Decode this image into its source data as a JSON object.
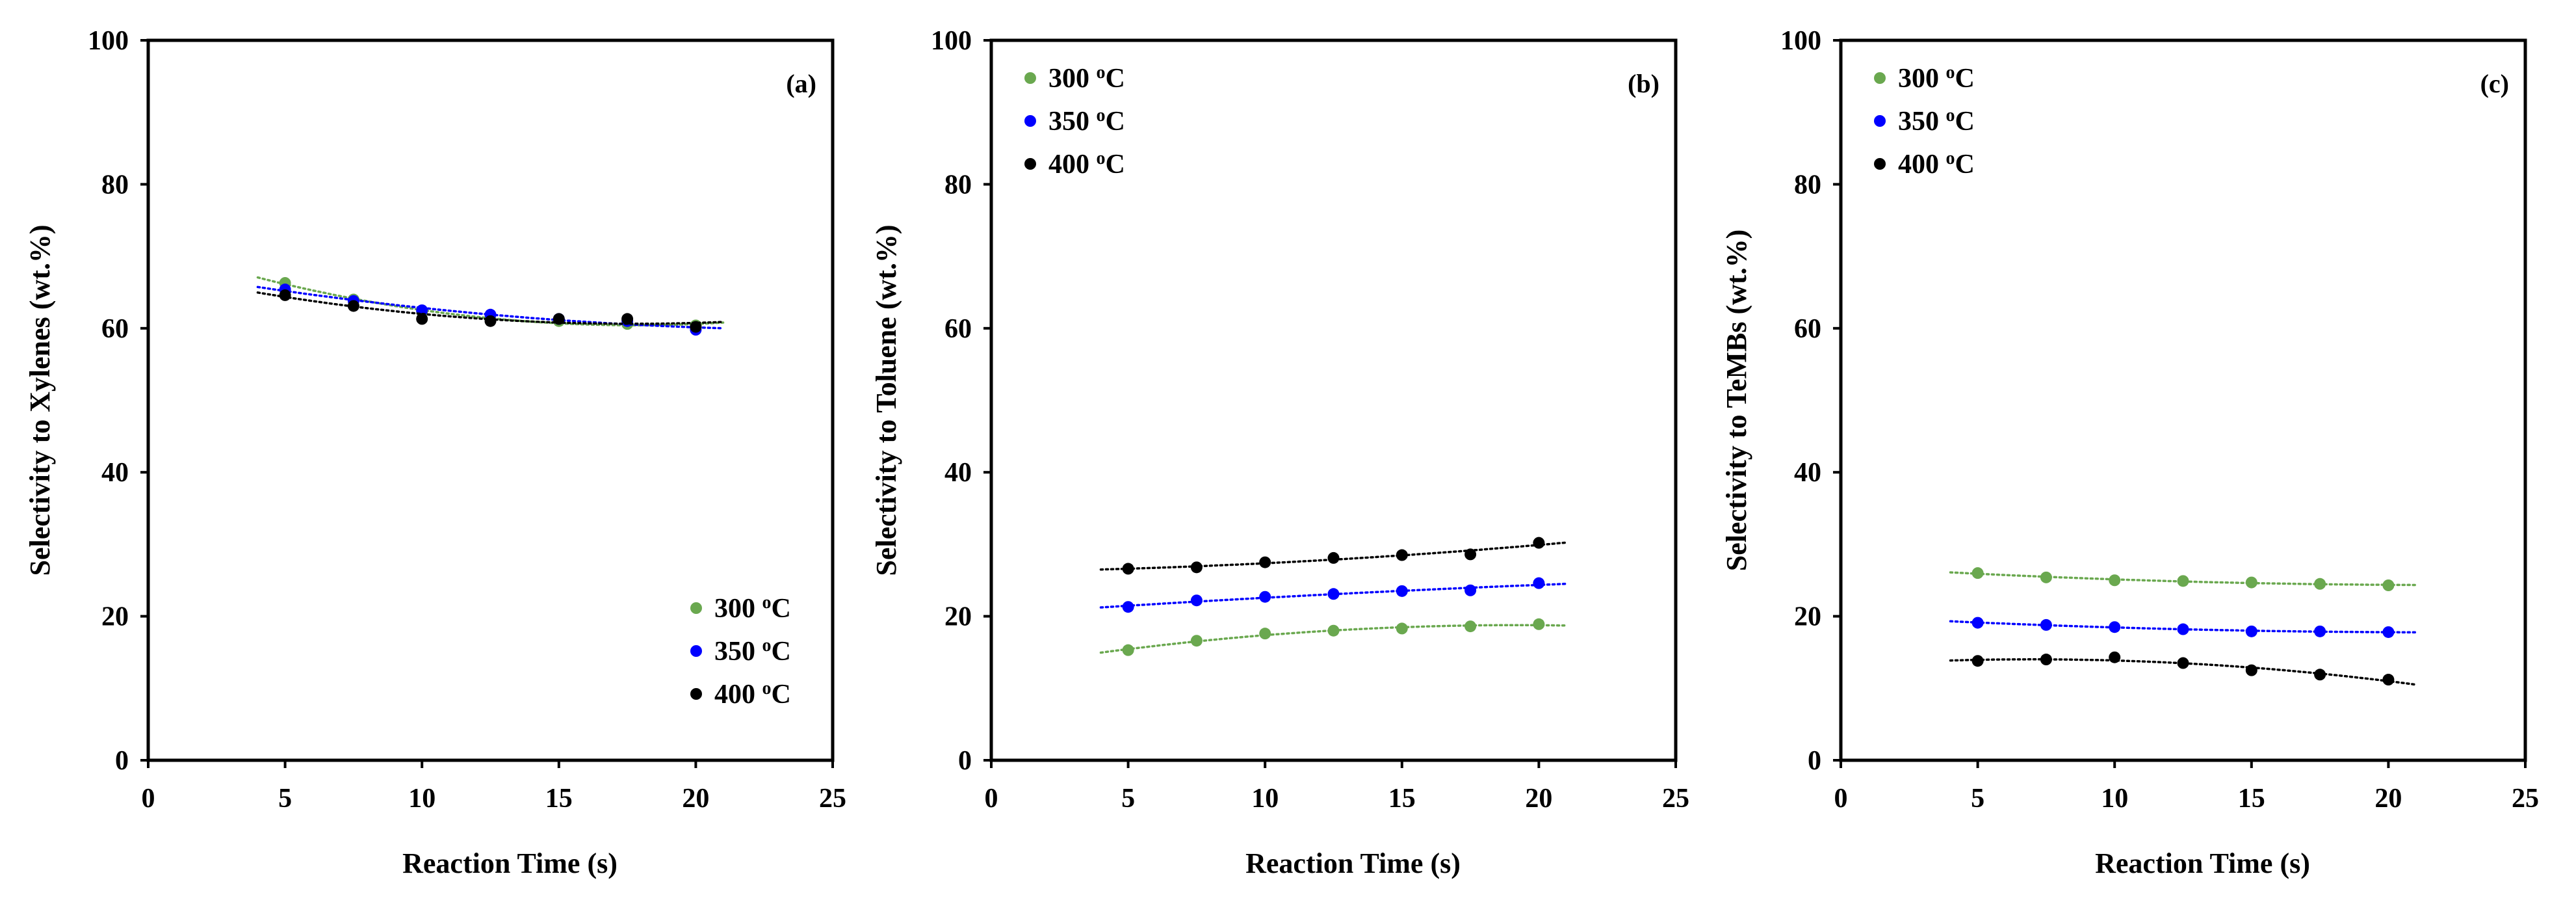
{
  "chart_data": [
    {
      "type": "scatter",
      "panel_label": "(a)",
      "xlabel": "Reaction Time (s)",
      "ylabel": "Selectivity to Xylenes (wt.%)",
      "xlim": [
        0,
        25
      ],
      "ylim": [
        0,
        100
      ],
      "xticks": [
        "0",
        "5",
        "10",
        "15",
        "20",
        "25"
      ],
      "yticks": [
        "0",
        "20",
        "40",
        "60",
        "80",
        "100"
      ],
      "legend_position": "bottom-right",
      "trendline_x_range": [
        4,
        21
      ],
      "series": [
        {
          "name": "300 °C",
          "legend_text": "300",
          "legend_sup": "o",
          "legend_unit": "C",
          "color": "#6aa84f",
          "x": [
            5,
            7.5,
            10,
            12.5,
            15,
            17.5,
            20
          ],
          "y": [
            66.3,
            64.0,
            62.3,
            61.3,
            61.0,
            60.6,
            60.4
          ]
        },
        {
          "name": "350 °C",
          "legend_text": "350",
          "legend_sup": "o",
          "legend_unit": "C",
          "color": "#0000ff",
          "x": [
            5,
            7.5,
            10,
            12.5,
            15,
            17.5,
            20
          ],
          "y": [
            65.4,
            63.8,
            62.5,
            61.9,
            61.3,
            61.0,
            59.8
          ]
        },
        {
          "name": "400 °C",
          "legend_text": "400",
          "legend_sup": "o",
          "legend_unit": "C",
          "color": "#000000",
          "x": [
            5,
            7.5,
            10,
            12.5,
            15,
            17.5,
            20
          ],
          "y": [
            64.6,
            63.1,
            61.3,
            61.0,
            61.3,
            61.3,
            60.2
          ]
        }
      ]
    },
    {
      "type": "scatter",
      "panel_label": "(b)",
      "xlabel": "Reaction Time (s)",
      "ylabel": "Selectivity to Toluene (wt.%)",
      "xlim": [
        0,
        25
      ],
      "ylim": [
        0,
        100
      ],
      "xticks": [
        "0",
        "5",
        "10",
        "15",
        "20",
        "25"
      ],
      "yticks": [
        "0",
        "20",
        "40",
        "60",
        "80",
        "100"
      ],
      "legend_position": "top-left",
      "trendline_x_range": [
        4,
        21
      ],
      "series": [
        {
          "name": "300 °C",
          "legend_text": "300",
          "legend_sup": "o",
          "legend_unit": "C",
          "color": "#6aa84f",
          "x": [
            5,
            7.5,
            10,
            12.5,
            15,
            17.5,
            20
          ],
          "y": [
            15.3,
            16.6,
            17.6,
            18.0,
            18.3,
            18.6,
            18.9
          ]
        },
        {
          "name": "350 °C",
          "legend_text": "350",
          "legend_sup": "o",
          "legend_unit": "C",
          "color": "#0000ff",
          "x": [
            5,
            7.5,
            10,
            12.5,
            15,
            17.5,
            20
          ],
          "y": [
            21.3,
            22.2,
            22.7,
            23.1,
            23.5,
            23.6,
            24.6
          ]
        },
        {
          "name": "400 °C",
          "legend_text": "400",
          "legend_sup": "o",
          "legend_unit": "C",
          "color": "#000000",
          "x": [
            5,
            7.5,
            10,
            12.5,
            15,
            17.5,
            20
          ],
          "y": [
            26.6,
            26.8,
            27.5,
            28.1,
            28.5,
            28.6,
            30.2
          ]
        }
      ]
    },
    {
      "type": "scatter",
      "panel_label": "(c)",
      "xlabel": "Reaction Time (s)",
      "ylabel": "Selectivity to TeMBs (wt.%)",
      "xlim": [
        0,
        25
      ],
      "ylim": [
        0,
        100
      ],
      "xticks": [
        "0",
        "5",
        "10",
        "15",
        "20",
        "25"
      ],
      "yticks": [
        "0",
        "20",
        "40",
        "60",
        "80",
        "100"
      ],
      "legend_position": "top-left",
      "trendline_x_range": [
        4,
        21
      ],
      "series": [
        {
          "name": "300 °C",
          "legend_text": "300",
          "legend_sup": "o",
          "legend_unit": "C",
          "color": "#6aa84f",
          "x": [
            5,
            7.5,
            10,
            12.5,
            15,
            17.5,
            20
          ],
          "y": [
            26.0,
            25.4,
            25.0,
            24.9,
            24.7,
            24.5,
            24.3
          ]
        },
        {
          "name": "350 °C",
          "legend_text": "350",
          "legend_sup": "o",
          "legend_unit": "C",
          "color": "#0000ff",
          "x": [
            5,
            7.5,
            10,
            12.5,
            15,
            17.5,
            20
          ],
          "y": [
            19.1,
            18.8,
            18.5,
            18.2,
            17.9,
            17.9,
            17.8
          ]
        },
        {
          "name": "400 °C",
          "legend_text": "400",
          "legend_sup": "o",
          "legend_unit": "C",
          "color": "#000000",
          "x": [
            5,
            7.5,
            10,
            12.5,
            15,
            17.5,
            20
          ],
          "y": [
            13.8,
            14.0,
            14.3,
            13.5,
            12.5,
            11.9,
            11.2
          ]
        }
      ]
    }
  ]
}
